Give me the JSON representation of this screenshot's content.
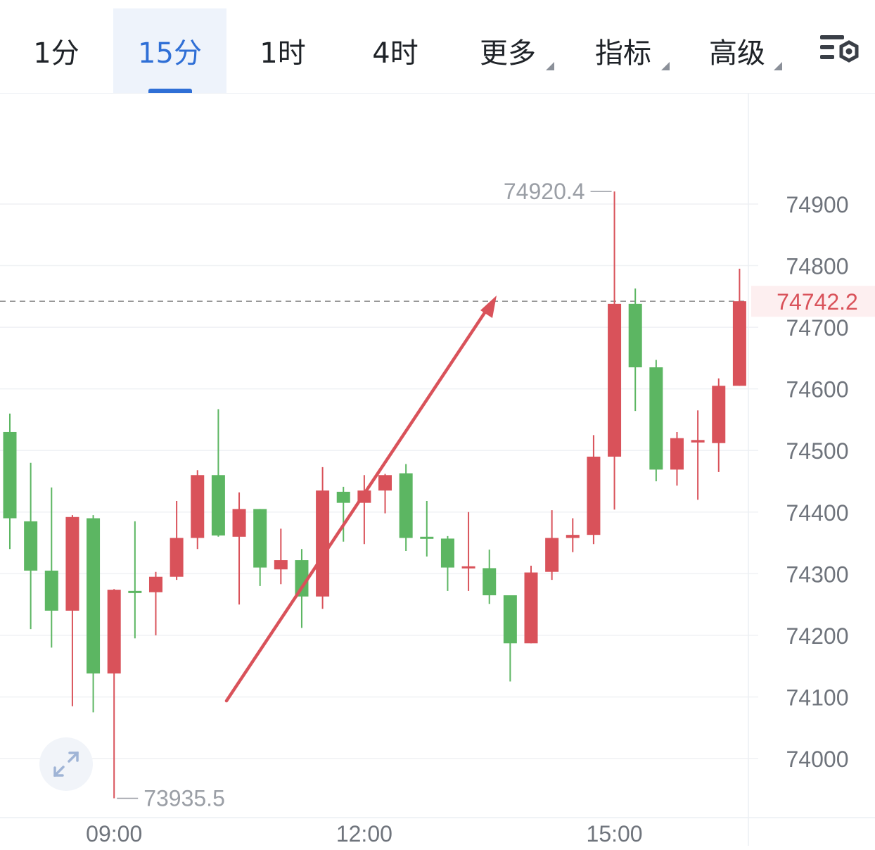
{
  "toolbar": {
    "tabs": [
      {
        "label": "1分",
        "active": false
      },
      {
        "label": "15分",
        "active": true
      },
      {
        "label": "1时",
        "active": false
      },
      {
        "label": "4时",
        "active": false
      },
      {
        "label": "更多",
        "dropdown": true
      },
      {
        "label": "指标",
        "dropdown": true
      },
      {
        "label": "高级",
        "dropdown": true
      }
    ],
    "settings_icon": "chart-settings-icon"
  },
  "colors": {
    "up": "#d9525a",
    "down": "#5cb662",
    "accent": "#2f6fd6",
    "price_line": "#8a8a8a",
    "arrow": "#d9525a"
  },
  "chart_data": {
    "type": "candlestick",
    "ylim": [
      73900,
      75050
    ],
    "y_ticks": [
      74900,
      74800,
      74700,
      74600,
      74500,
      74400,
      74300,
      74200,
      74100,
      74000
    ],
    "x_ticks": [
      {
        "label": "09:00",
        "index": 5
      },
      {
        "label": "12:00",
        "index": 17
      },
      {
        "label": "15:00",
        "index": 29
      }
    ],
    "current_price": "74742.2",
    "high_label": "74920.4",
    "low_label": "73935.5",
    "candles": [
      {
        "o": 74530,
        "h": 74560,
        "l": 74340,
        "c": 74390
      },
      {
        "o": 74385,
        "h": 74480,
        "l": 74210,
        "c": 74305
      },
      {
        "o": 74305,
        "h": 74440,
        "l": 74180,
        "c": 74240
      },
      {
        "o": 74240,
        "h": 74395,
        "l": 74085,
        "c": 74392
      },
      {
        "o": 74390,
        "h": 74395,
        "l": 74075,
        "c": 74138
      },
      {
        "o": 74138,
        "h": 74275,
        "l": 73935.5,
        "c": 74274
      },
      {
        "o": 74272,
        "h": 74385,
        "l": 74195,
        "c": 74270
      },
      {
        "o": 74270,
        "h": 74303,
        "l": 74200,
        "c": 74295
      },
      {
        "o": 74295,
        "h": 74418,
        "l": 74290,
        "c": 74358
      },
      {
        "o": 74358,
        "h": 74468,
        "l": 74340,
        "c": 74460
      },
      {
        "o": 74460,
        "h": 74567,
        "l": 74360,
        "c": 74362
      },
      {
        "o": 74360,
        "h": 74432,
        "l": 74250,
        "c": 74405
      },
      {
        "o": 74405,
        "h": 74405,
        "l": 74280,
        "c": 74310
      },
      {
        "o": 74307,
        "h": 74373,
        "l": 74283,
        "c": 74322
      },
      {
        "o": 74322,
        "h": 74340,
        "l": 74212,
        "c": 74263
      },
      {
        "o": 74263,
        "h": 74473,
        "l": 74243,
        "c": 74435
      },
      {
        "o": 74433,
        "h": 74441,
        "l": 74352,
        "c": 74415
      },
      {
        "o": 74415,
        "h": 74460,
        "l": 74348,
        "c": 74435
      },
      {
        "o": 74435,
        "h": 74462,
        "l": 74398,
        "c": 74460
      },
      {
        "o": 74463,
        "h": 74478,
        "l": 74337,
        "c": 74358
      },
      {
        "o": 74360,
        "h": 74418,
        "l": 74328,
        "c": 74358
      },
      {
        "o": 74357,
        "h": 74361,
        "l": 74272,
        "c": 74310
      },
      {
        "o": 74310,
        "h": 74400,
        "l": 74272,
        "c": 74312
      },
      {
        "o": 74309,
        "h": 74339,
        "l": 74251,
        "c": 74265
      },
      {
        "o": 74265,
        "h": 74265,
        "l": 74125,
        "c": 74187
      },
      {
        "o": 74187,
        "h": 74313,
        "l": 74187,
        "c": 74302
      },
      {
        "o": 74303,
        "h": 74403,
        "l": 74290,
        "c": 74358
      },
      {
        "o": 74358,
        "h": 74390,
        "l": 74335,
        "c": 74363
      },
      {
        "o": 74363,
        "h": 74525,
        "l": 74348,
        "c": 74490
      },
      {
        "o": 74490,
        "h": 74920.4,
        "l": 74404,
        "c": 74738
      },
      {
        "o": 74738,
        "h": 74763,
        "l": 74564,
        "c": 74635
      },
      {
        "o": 74635,
        "h": 74647,
        "l": 74450,
        "c": 74469
      },
      {
        "o": 74469,
        "h": 74530,
        "l": 74443,
        "c": 74520
      },
      {
        "o": 74513,
        "h": 74565,
        "l": 74420,
        "c": 74517
      },
      {
        "o": 74512,
        "h": 74617,
        "l": 74465,
        "c": 74605
      },
      {
        "o": 74605,
        "h": 74795,
        "l": 74605,
        "c": 74742.2
      }
    ]
  }
}
